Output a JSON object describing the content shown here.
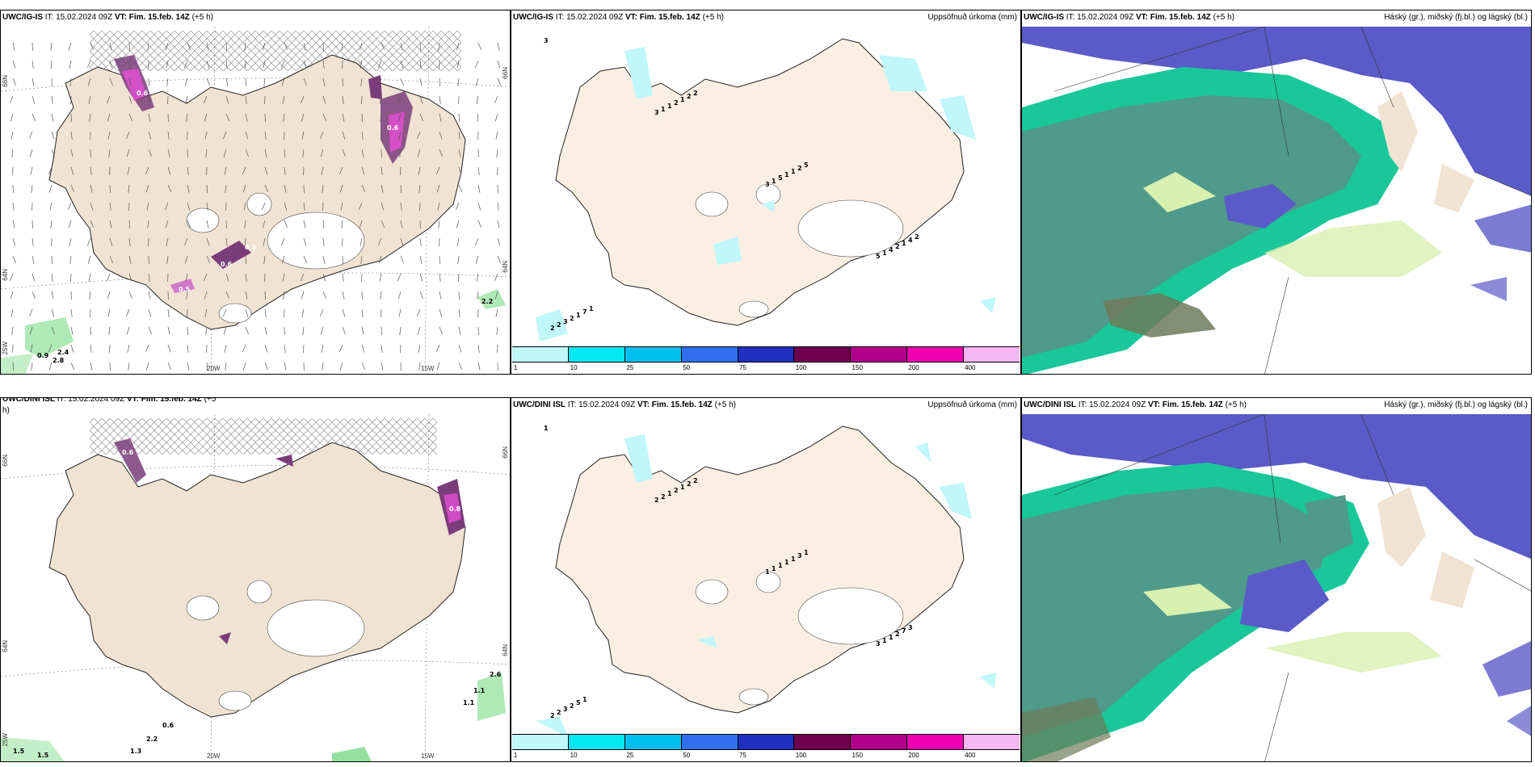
{
  "panels": {
    "p1": {
      "model": "UWC/IG-IS",
      "it": "IT: 15.02.2024 09Z",
      "vt": "VT: Fim. 15.feb. 14Z",
      "lead": "(+5 h)",
      "title_right": ""
    },
    "p2": {
      "model": "UWC/IG-IS",
      "it": "IT: 15.02.2024 09Z",
      "vt": "VT: Fim. 15.feb. 14Z",
      "lead": "(+5 h)",
      "title_right": "Uppsöfnuð úrkoma (mm)"
    },
    "p3": {
      "model": "UWC/IG-IS",
      "it": "IT: 15.02.2024 09Z",
      "vt": "VT: Fim. 15.feb. 14Z",
      "lead": "(+5 h)",
      "title_right": "Háský (gr.), miðský (fj.bl.) og lágský (bl.)"
    },
    "p4": {
      "model": "UWC/DINI ISL",
      "it": "IT: 15.02.2024 09Z",
      "vt": "VT: Fim. 15.feb. 14Z",
      "lead": "(+5",
      "lead2": "h)",
      "title_right": ""
    },
    "p5": {
      "model": "UWC/DINI ISL",
      "it": "IT: 15.02.2024 09Z",
      "vt": "VT: Fim. 15.feb. 14Z",
      "lead": "(+5 h)",
      "title_right": "Uppsöfnuð úrkoma (mm)"
    },
    "p6": {
      "model": "UWC/DINI ISL",
      "it": "IT: 15.02.2024 09Z",
      "vt": "VT: Fim. 15.feb. 14Z",
      "lead": "(+5 h)",
      "title_right": "Háský (gr.), miðský (fj.bl.) og lágský (bl.)"
    }
  },
  "axes": {
    "lon1": "20W",
    "lon2": "15W",
    "lat1": "66N",
    "lat2": "64N",
    "lat3": "25W",
    "lat_right1": "66N",
    "lat_right2": "64N"
  },
  "colorbar": {
    "colors": [
      "#bff7fb",
      "#00e8f0",
      "#00bff0",
      "#3070f0",
      "#2030c0",
      "#700050",
      "#b0008a",
      "#f000b0",
      "#f6b6f0"
    ],
    "ticks": [
      "1",
      "10",
      "25",
      "50",
      "75",
      "100",
      "150",
      "200",
      "400"
    ]
  },
  "precip_labels": {
    "p1": [
      "0.6",
      "0.5",
      "0.6",
      "0.5",
      "0.6",
      "0.9",
      "2.4",
      "2.8",
      "2.2"
    ],
    "p2": [
      "3",
      "3",
      "3",
      "5",
      "2",
      "1",
      "1",
      "1",
      "2",
      "1",
      "5",
      "4",
      "3",
      "2",
      "1",
      "2",
      "2",
      "1",
      "1",
      "1",
      "1",
      "2",
      "2",
      "4",
      "7",
      "2",
      "5",
      "2",
      "1"
    ],
    "p4": [
      "0.6",
      "1.1",
      "1.1",
      "0.6",
      "2.2",
      "1.3",
      "1.5",
      "1.5",
      "2.6",
      "0.8"
    ],
    "p5": [
      "1",
      "2",
      "1",
      "3",
      "2",
      "2",
      "1",
      "1",
      "2",
      "1",
      "1",
      "1",
      "3",
      "2",
      "1",
      "2",
      "2",
      "1",
      "1",
      "7",
      "5",
      "2",
      "3",
      "3",
      "1",
      "2",
      "1"
    ]
  },
  "colors": {
    "land": "#f1e3d3",
    "land_light": "#fbefe4",
    "sea": "#ffffff",
    "ice": "#ffffff",
    "cloud_high": "#5a5ac8",
    "cloud_mid": "#19c79a",
    "cloud_low": "#4f9a8a",
    "precip_purple": "#7a3d7a",
    "precip_pink": "#e64fd6"
  }
}
